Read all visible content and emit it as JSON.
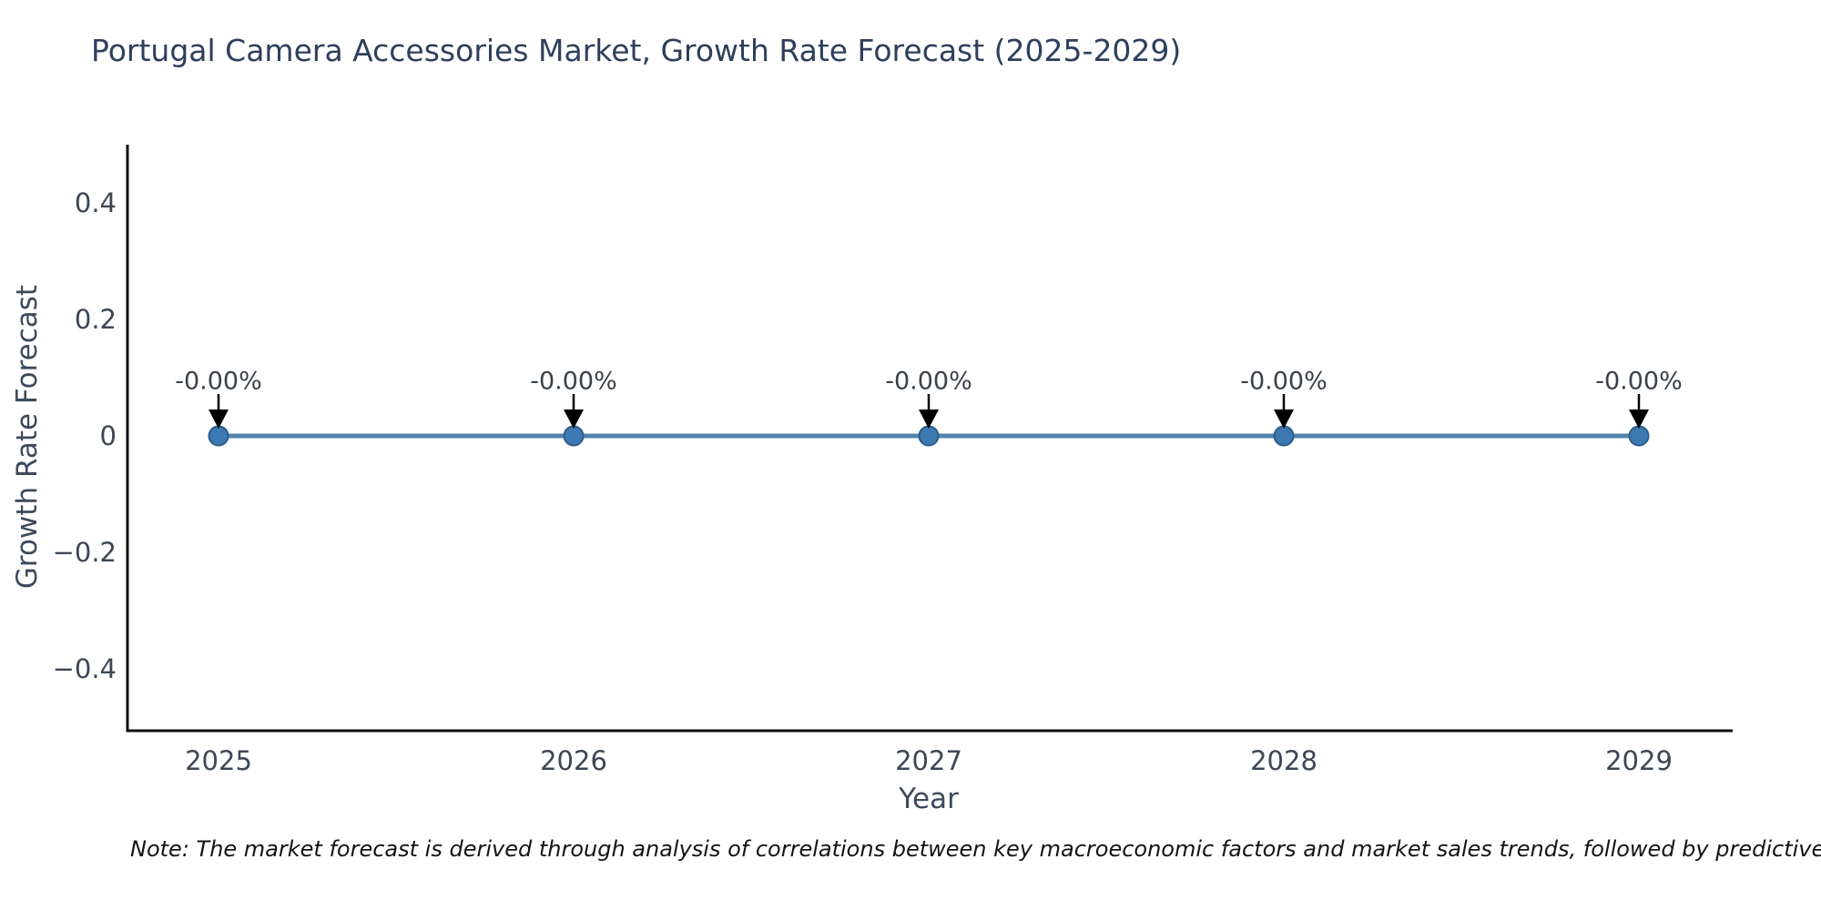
{
  "title": "Portugal Camera Accessories Market, Growth Rate Forecast (2025-2029)",
  "note": "Note: The market forecast is derived through analysis of correlations between key macroeconomic factors and market sales trends, followed by predictive modeling to project future sales.",
  "chart_data": {
    "type": "line",
    "title": "Portugal Camera Accessories Market, Growth Rate Forecast (2025-2029)",
    "xlabel": "Year",
    "ylabel": "Growth Rate Forecast",
    "categories": [
      "2025",
      "2026",
      "2027",
      "2028",
      "2029"
    ],
    "series": [
      {
        "name": "Growth Rate Forecast",
        "values": [
          0,
          0,
          0,
          0,
          0
        ]
      }
    ],
    "point_labels": [
      "-0.00%",
      "-0.00%",
      "-0.00%",
      "-0.00%",
      "-0.00%"
    ],
    "yticks": [
      {
        "value": 0.4,
        "label": "0.4"
      },
      {
        "value": 0.2,
        "label": "0.2"
      },
      {
        "value": 0,
        "label": "0"
      },
      {
        "value": -0.2,
        "label": "−0.2"
      },
      {
        "value": -0.4,
        "label": "−0.4"
      }
    ],
    "ylim": [
      -0.5,
      0.5
    ],
    "grid": false,
    "legend": "none",
    "annotations_style": "value label with downward black arrow to each marker",
    "colors": {
      "line": "#5484ae",
      "marker": "#3c79b0",
      "marker_edge": "#2c5d8a",
      "arrow": "#000000",
      "spine": "#0f0f0f",
      "title_text": "#2e3f5c",
      "tick_text": "#3d4654"
    }
  }
}
